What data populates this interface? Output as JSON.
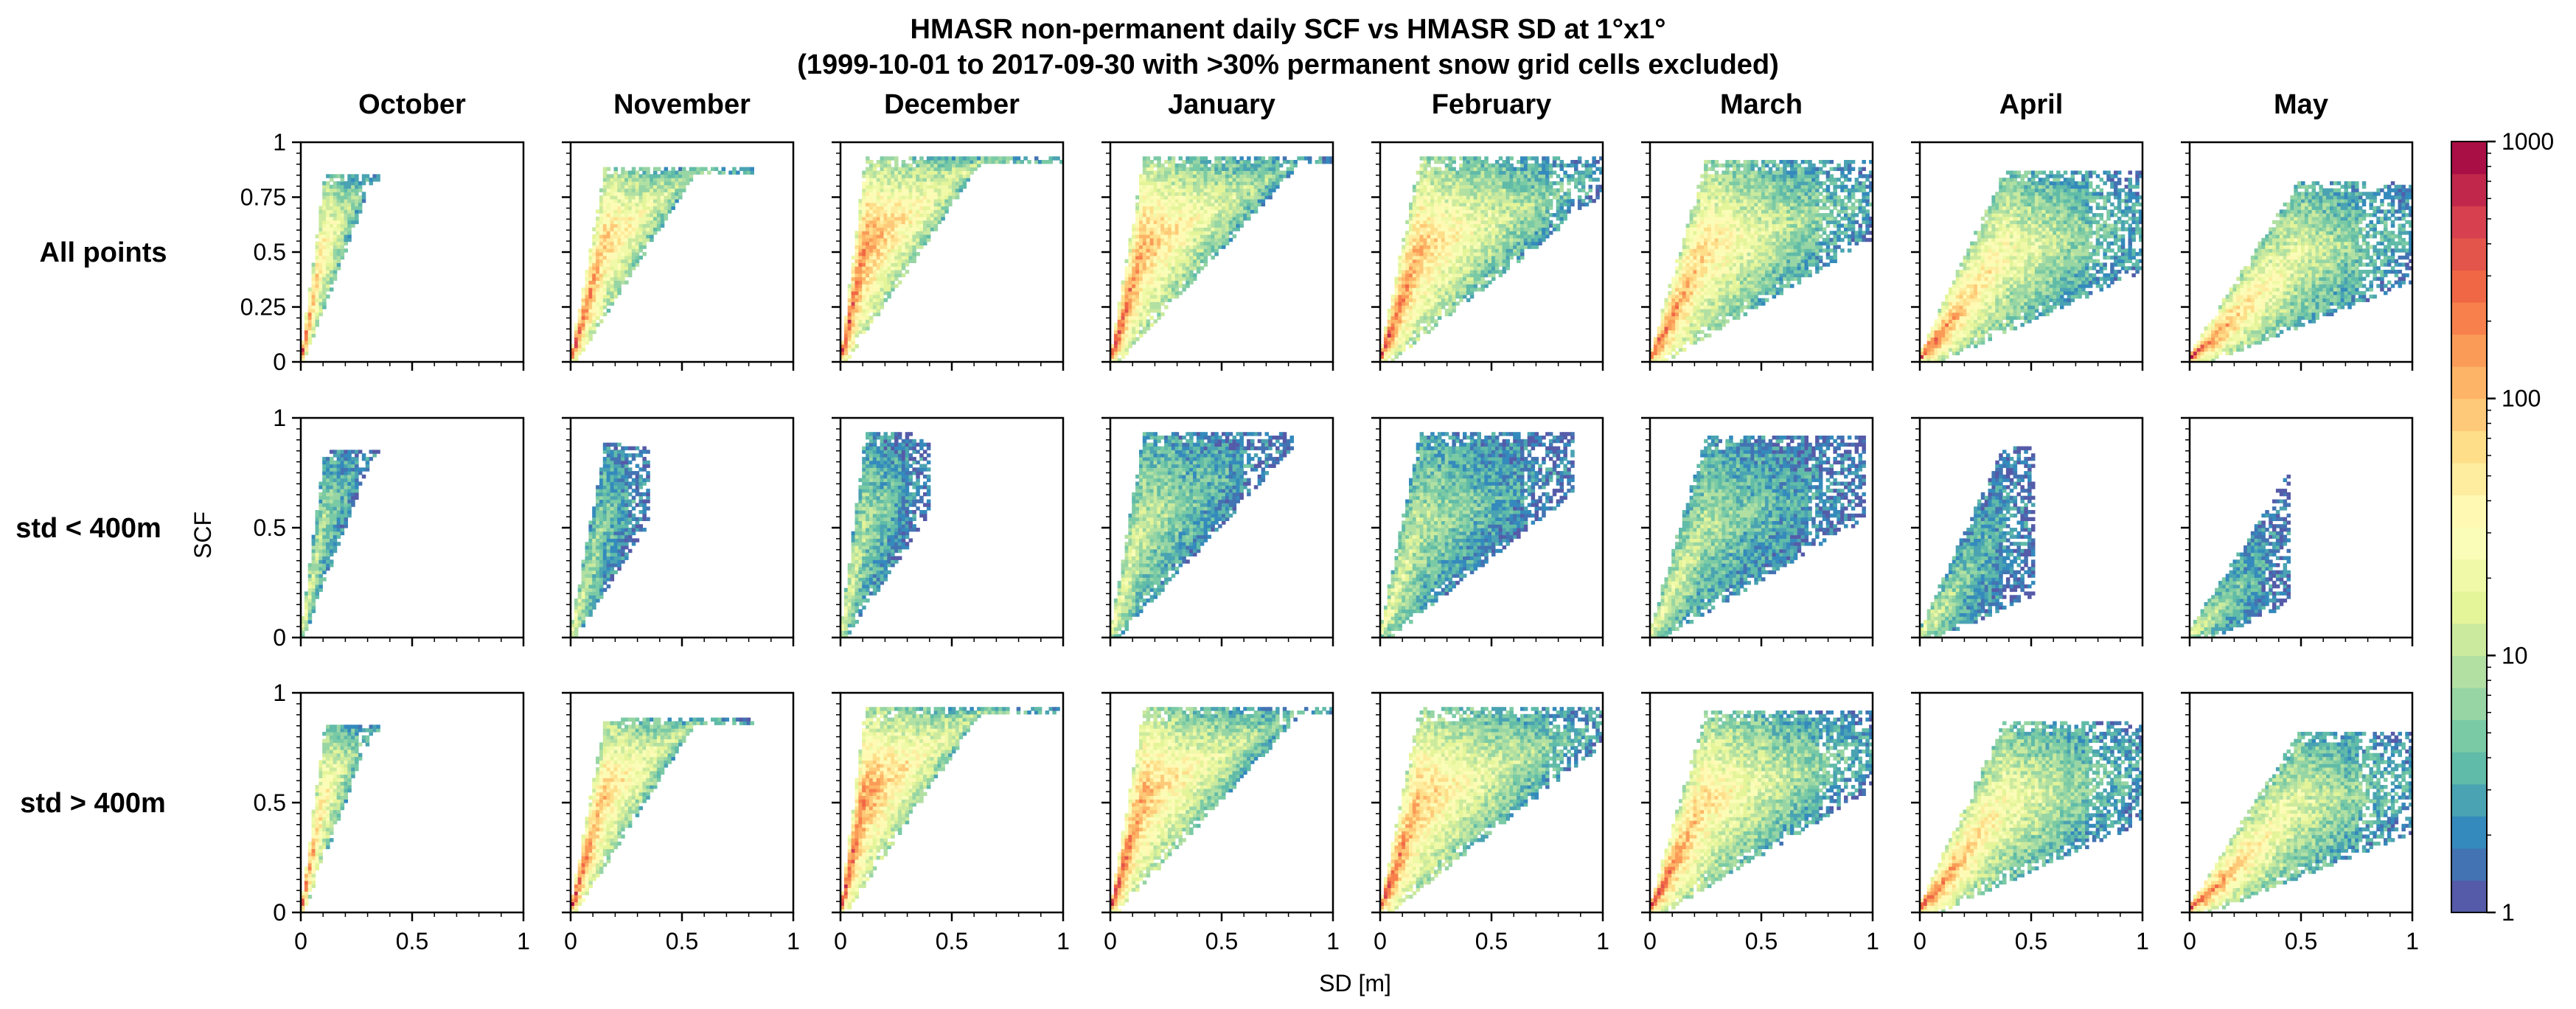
{
  "figure": {
    "title_line1": "HMASR non-permanent daily SCF vs HMASR SD at 1°x1°",
    "title_line2": "(1999-10-01 to 2017-09-30 with >30% permanent snow grid cells excluded)",
    "xlabel": "SD [m]",
    "ylabel": "SCF"
  },
  "chart_data": {
    "type": "heatmap",
    "columns": [
      "October",
      "November",
      "December",
      "January",
      "February",
      "March",
      "April",
      "May"
    ],
    "rows": [
      "All points",
      "std < 400m",
      "std > 400m"
    ],
    "xlim": [
      0,
      1
    ],
    "ylim": [
      0,
      1
    ],
    "x_ticks": [
      0,
      0.5,
      1
    ],
    "x_tick_labels": [
      "0",
      "0.5",
      "1"
    ],
    "y_ticks_by_row": [
      [
        0,
        0.25,
        0.5,
        0.75,
        1
      ],
      [
        0,
        0.5,
        1
      ],
      [
        0,
        0.5,
        1
      ]
    ],
    "y_tick_labels_by_row": [
      [
        "0",
        "0.25",
        "0.5",
        "0.75",
        "1"
      ],
      [
        "0",
        "0.5",
        "1"
      ],
      [
        "0",
        "0.5",
        "1"
      ]
    ],
    "colorbar": {
      "scale": "log",
      "range": [
        1,
        1000
      ],
      "ticks": [
        1,
        10,
        100,
        1000
      ],
      "tick_labels": [
        "1",
        "10",
        "100",
        "1000"
      ],
      "colormap": "Spectral_r",
      "n_levels": 24,
      "colors": [
        "#5e4fa2",
        "#3288bd",
        "#66c2a5",
        "#abdda4",
        "#e6f598",
        "#ffffbf",
        "#fee08b",
        "#fdae61",
        "#f46d43",
        "#d53e4f",
        "#9e0142"
      ]
    },
    "panel_shapes_approx": {
      "October": {
        "max_sd": 0.35,
        "max_scf": 0.85,
        "upper_slope": 7.5,
        "lower_slope": 2.7
      },
      "November": {
        "max_sd": 0.8,
        "max_scf": 0.88,
        "upper_slope": 5.5,
        "lower_slope": 1.6
      },
      "December": {
        "max_sd": 1.0,
        "max_scf": 0.93,
        "upper_slope": 8.0,
        "lower_slope": 1.5
      },
      "January": {
        "max_sd": 1.0,
        "max_scf": 0.93,
        "upper_slope": 6.0,
        "lower_slope": 1.1
      },
      "February": {
        "max_sd": 1.0,
        "max_scf": 0.93,
        "upper_slope": 5.0,
        "lower_slope": 0.8
      },
      "March": {
        "max_sd": 1.0,
        "max_scf": 0.92,
        "upper_slope": 3.5,
        "lower_slope": 0.6
      },
      "April": {
        "max_sd": 1.0,
        "max_scf": 0.87,
        "upper_slope": 2.2,
        "lower_slope": 0.45
      },
      "May": {
        "max_sd": 1.0,
        "max_scf": 0.82,
        "upper_slope": 1.6,
        "lower_slope": 0.4
      }
    },
    "std_lt_400_max_sd": [
      0.35,
      0.35,
      0.4,
      0.8,
      0.85,
      0.95,
      0.5,
      0.45
    ]
  }
}
